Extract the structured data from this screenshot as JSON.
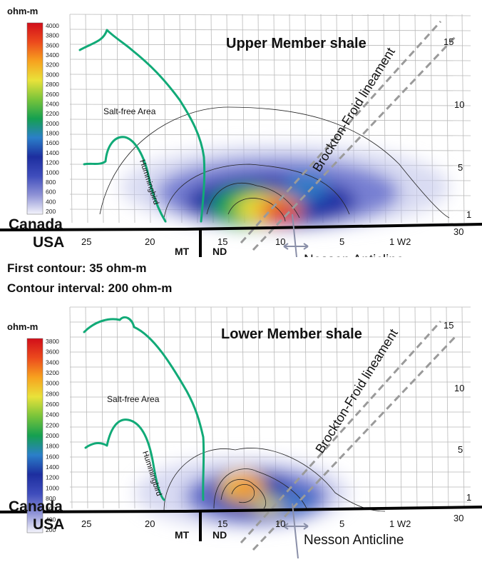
{
  "legend_unit": "ohm-m",
  "upper_panel": {
    "title": "Upper Member shale",
    "colorbar_ticks": [
      "4000",
      "3800",
      "3600",
      "3400",
      "3200",
      "3000",
      "2800",
      "2600",
      "2400",
      "2200",
      "2000",
      "1800",
      "1600",
      "1400",
      "1200",
      "1000",
      "800",
      "600",
      "400",
      "200"
    ]
  },
  "lower_panel": {
    "title": "Lower Member shale",
    "colorbar_ticks": [
      "3800",
      "3600",
      "3400",
      "3200",
      "3000",
      "2800",
      "2600",
      "2400",
      "2200",
      "2000",
      "1800",
      "1600",
      "1400",
      "1200",
      "1000",
      "800",
      "600",
      "400",
      "200"
    ]
  },
  "map_labels": {
    "salt_free_area": "Salt-free Area",
    "hummingbird": "Hummingbird",
    "brockton_froid": "Brockton-Froid lineament",
    "nesson": "Nesson Anticline",
    "canada": "Canada",
    "usa": "USA",
    "mt": "MT",
    "nd": "ND"
  },
  "range_labels": [
    "25",
    "20",
    "15",
    "10",
    "5",
    "1 W2"
  ],
  "township_labels": [
    "15",
    "10",
    "5",
    "1",
    "30"
  ],
  "contour_notes": {
    "first": "First contour: 35 ohm-m",
    "interval": "Contour interval: 200 ohm-m"
  },
  "colors": {
    "boundary": "#11aa77",
    "border_line": "#000000",
    "lineament": "#9a9a9a",
    "grid": "#b9b9b9",
    "nesson_arrow": "#8a8fa8"
  }
}
